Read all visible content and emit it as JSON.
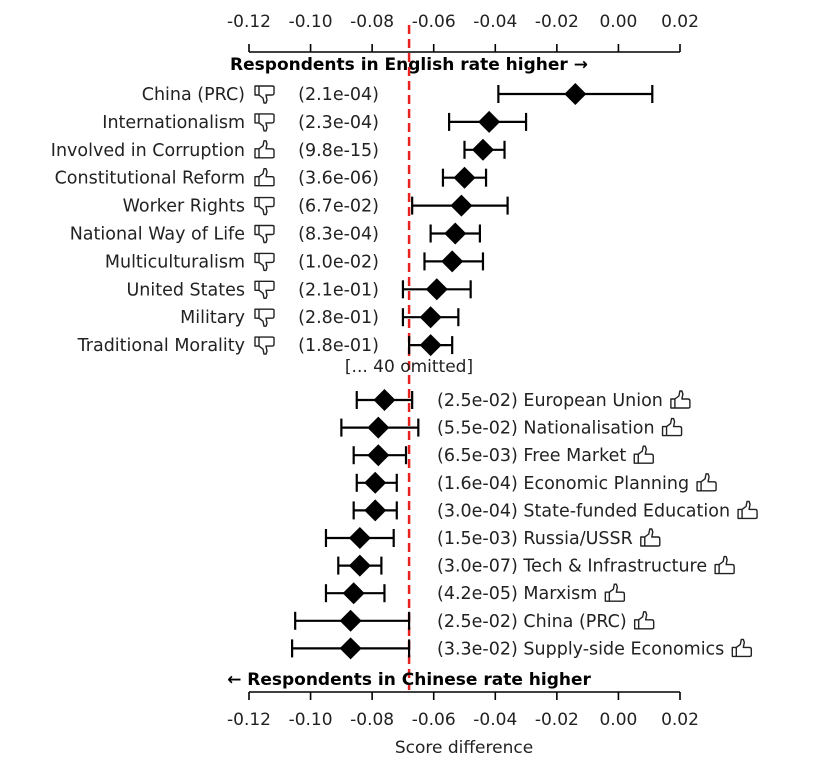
{
  "chart_data": {
    "type": "scatter",
    "xlabel": "Score difference",
    "xlim": [
      -0.125,
      0.02
    ],
    "x_ticks": [
      "-0.12",
      "-0.10",
      "-0.08",
      "-0.06",
      "-0.04",
      "-0.02",
      "0.00",
      "0.02"
    ],
    "x_tick_values": [
      -0.12,
      -0.1,
      -0.08,
      -0.06,
      -0.04,
      -0.02,
      0.0,
      0.02
    ],
    "reference_line": -0.068,
    "reference_line_color": "#e8231f",
    "marker_color": "#000000",
    "top_header": "Respondents in English rate higher →",
    "bottom_header": "← Respondents in Chinese rate higher",
    "omitted_note": "[... 40 omitted]",
    "top_rows": [
      {
        "label": "China (PRC)",
        "icon": "thumbs-down",
        "pvalue": "(2.1e-04)",
        "x": -0.014,
        "lo": -0.039,
        "hi": 0.011
      },
      {
        "label": "Internationalism",
        "icon": "thumbs-down",
        "pvalue": "(2.3e-04)",
        "x": -0.042,
        "lo": -0.055,
        "hi": -0.03
      },
      {
        "label": "Involved in Corruption",
        "icon": "thumbs-up",
        "pvalue": "(9.8e-15)",
        "x": -0.044,
        "lo": -0.05,
        "hi": -0.037
      },
      {
        "label": "Constitutional Reform",
        "icon": "thumbs-up",
        "pvalue": "(3.6e-06)",
        "x": -0.05,
        "lo": -0.057,
        "hi": -0.043
      },
      {
        "label": "Worker Rights",
        "icon": "thumbs-down",
        "pvalue": "(6.7e-02)",
        "x": -0.051,
        "lo": -0.067,
        "hi": -0.036
      },
      {
        "label": "National Way of Life",
        "icon": "thumbs-down",
        "pvalue": "(8.3e-04)",
        "x": -0.053,
        "lo": -0.061,
        "hi": -0.045
      },
      {
        "label": "Multiculturalism",
        "icon": "thumbs-down",
        "pvalue": "(1.0e-02)",
        "x": -0.054,
        "lo": -0.063,
        "hi": -0.044
      },
      {
        "label": "United States",
        "icon": "thumbs-down",
        "pvalue": "(2.1e-01)",
        "x": -0.059,
        "lo": -0.07,
        "hi": -0.048
      },
      {
        "label": "Military",
        "icon": "thumbs-down",
        "pvalue": "(2.8e-01)",
        "x": -0.061,
        "lo": -0.07,
        "hi": -0.052
      },
      {
        "label": "Traditional Morality",
        "icon": "thumbs-down",
        "pvalue": "(1.8e-01)",
        "x": -0.061,
        "lo": -0.068,
        "hi": -0.054
      }
    ],
    "bottom_rows": [
      {
        "label": "European Union",
        "icon": "thumbs-up",
        "pvalue": "(2.5e-02)",
        "x": -0.076,
        "lo": -0.085,
        "hi": -0.067
      },
      {
        "label": "Nationalisation",
        "icon": "thumbs-up",
        "pvalue": "(5.5e-02)",
        "x": -0.078,
        "lo": -0.09,
        "hi": -0.065
      },
      {
        "label": "Free Market",
        "icon": "thumbs-up",
        "pvalue": "(6.5e-03)",
        "x": -0.078,
        "lo": -0.086,
        "hi": -0.069
      },
      {
        "label": "Economic Planning",
        "icon": "thumbs-up",
        "pvalue": "(1.6e-04)",
        "x": -0.079,
        "lo": -0.085,
        "hi": -0.072
      },
      {
        "label": "State-funded Education",
        "icon": "thumbs-up",
        "pvalue": "(3.0e-04)",
        "x": -0.079,
        "lo": -0.086,
        "hi": -0.072
      },
      {
        "label": "Russia/USSR",
        "icon": "thumbs-up",
        "pvalue": "(1.5e-03)",
        "x": -0.084,
        "lo": -0.095,
        "hi": -0.073
      },
      {
        "label": "Tech & Infrastructure",
        "icon": "thumbs-up",
        "pvalue": "(3.0e-07)",
        "x": -0.084,
        "lo": -0.091,
        "hi": -0.077
      },
      {
        "label": "Marxism",
        "icon": "thumbs-up",
        "pvalue": "(4.2e-05)",
        "x": -0.086,
        "lo": -0.095,
        "hi": -0.076
      },
      {
        "label": "China (PRC)",
        "icon": "thumbs-up",
        "pvalue": "(2.5e-02)",
        "x": -0.087,
        "lo": -0.105,
        "hi": -0.068
      },
      {
        "label": "Supply-side Economics",
        "icon": "thumbs-up",
        "pvalue": "(3.3e-02)",
        "x": -0.087,
        "lo": -0.106,
        "hi": -0.068
      }
    ]
  }
}
